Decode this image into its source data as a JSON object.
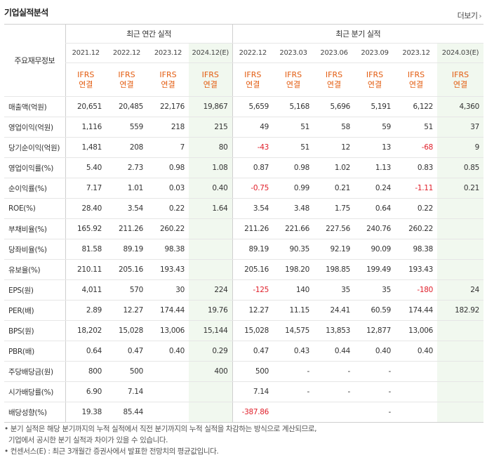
{
  "title": "기업실적분석",
  "more_label": "더보기",
  "header": {
    "row_label": "주요재무정보",
    "annual_group": "최근 연간 실적",
    "quarter_group": "최근 분기 실적",
    "annual_periods": [
      "2021.12",
      "2022.12",
      "2023.12",
      "2024.12(E)"
    ],
    "quarter_periods": [
      "2022.12",
      "2023.03",
      "2023.06",
      "2023.09",
      "2023.12",
      "2024.03(E)"
    ],
    "ifrs_top": "IFRS",
    "ifrs_bottom": "연결"
  },
  "rows": [
    {
      "label": "매출액(억원)",
      "values": [
        "20,651",
        "20,485",
        "22,176",
        "19,867",
        "5,659",
        "5,168",
        "5,696",
        "5,191",
        "6,122",
        "4,360"
      ]
    },
    {
      "label": "영업이익(억원)",
      "values": [
        "1,116",
        "559",
        "218",
        "215",
        "49",
        "51",
        "58",
        "59",
        "51",
        "37"
      ]
    },
    {
      "label": "당기순이익(억원)",
      "values": [
        "1,481",
        "208",
        "7",
        "80",
        "-43",
        "51",
        "12",
        "13",
        "-68",
        "9"
      ]
    },
    {
      "label": "영업이익률(%)",
      "values": [
        "5.40",
        "2.73",
        "0.98",
        "1.08",
        "0.87",
        "0.98",
        "1.02",
        "1.13",
        "0.83",
        "0.85"
      ]
    },
    {
      "label": "순이익률(%)",
      "values": [
        "7.17",
        "1.01",
        "0.03",
        "0.40",
        "-0.75",
        "0.99",
        "0.21",
        "0.24",
        "-1.11",
        "0.21"
      ]
    },
    {
      "label": "ROE(%)",
      "values": [
        "28.40",
        "3.54",
        "0.22",
        "1.64",
        "3.54",
        "3.48",
        "1.75",
        "0.64",
        "0.22",
        ""
      ]
    },
    {
      "label": "부채비율(%)",
      "values": [
        "165.92",
        "211.26",
        "260.22",
        "",
        "211.26",
        "221.66",
        "227.56",
        "240.76",
        "260.22",
        ""
      ]
    },
    {
      "label": "당좌비율(%)",
      "values": [
        "81.58",
        "89.19",
        "98.38",
        "",
        "89.19",
        "90.35",
        "92.19",
        "90.09",
        "98.38",
        ""
      ]
    },
    {
      "label": "유보율(%)",
      "values": [
        "210.11",
        "205.16",
        "193.43",
        "",
        "205.16",
        "198.20",
        "198.85",
        "199.49",
        "193.43",
        ""
      ]
    },
    {
      "label": "EPS(원)",
      "values": [
        "4,011",
        "570",
        "30",
        "224",
        "-125",
        "140",
        "35",
        "35",
        "-180",
        "24"
      ]
    },
    {
      "label": "PER(배)",
      "values": [
        "2.89",
        "12.27",
        "174.44",
        "19.76",
        "12.27",
        "11.15",
        "24.41",
        "60.59",
        "174.44",
        "182.92"
      ]
    },
    {
      "label": "BPS(원)",
      "values": [
        "18,202",
        "15,028",
        "13,006",
        "15,144",
        "15,028",
        "14,575",
        "13,853",
        "12,877",
        "13,006",
        ""
      ]
    },
    {
      "label": "PBR(배)",
      "values": [
        "0.64",
        "0.47",
        "0.40",
        "0.29",
        "0.47",
        "0.43",
        "0.44",
        "0.40",
        "0.40",
        ""
      ]
    },
    {
      "label": "주당배당금(원)",
      "values": [
        "800",
        "500",
        "",
        "400",
        "500",
        "-",
        "-",
        "-",
        "",
        ""
      ]
    },
    {
      "label": "시가배당률(%)",
      "values": [
        "6.90",
        "7.14",
        "",
        "",
        "7.14",
        "-",
        "-",
        "-",
        "",
        ""
      ]
    },
    {
      "label": "배당성향(%)",
      "values": [
        "19.38",
        "85.44",
        "",
        "",
        "-387.86",
        "",
        "",
        "-",
        "",
        ""
      ]
    }
  ],
  "notes": [
    "• 분기 실적은 해당 분기까지의 누적 실적에서 직전 분기까지의 누적 실적을 차감하는 방식으로 계산되므로,",
    "  기업에서 공시한 분기 실적과 차이가 있을 수 있습니다.",
    "• 컨센서스(E) : 최근 3개월간 증권사에서 발표한 전망치의 평균값입니다."
  ]
}
